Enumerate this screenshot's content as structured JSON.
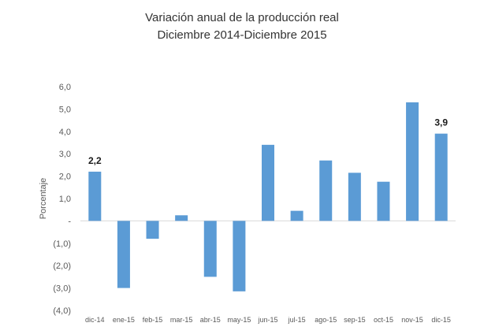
{
  "chart_data": {
    "type": "bar",
    "title": "Variación anual de la producción real",
    "subtitle": "Diciembre 2014-Diciembre 2015",
    "xlabel": "",
    "ylabel": "Porcentaje",
    "ylim": [
      -4,
      6
    ],
    "yticks": [
      {
        "value": 6,
        "label": "6,0"
      },
      {
        "value": 5,
        "label": "5,0"
      },
      {
        "value": 4,
        "label": "4,0"
      },
      {
        "value": 3,
        "label": "3,0"
      },
      {
        "value": 2,
        "label": "2,0"
      },
      {
        "value": 1,
        "label": "1,0"
      },
      {
        "value": 0,
        "label": "-"
      },
      {
        "value": -1,
        "label": "(1,0)"
      },
      {
        "value": -2,
        "label": "(2,0)"
      },
      {
        "value": -3,
        "label": "(3,0)"
      },
      {
        "value": -4,
        "label": "(4,0)"
      }
    ],
    "categories": [
      "dic-14",
      "ene-15",
      "feb-15",
      "mar-15",
      "abr-15",
      "may-15",
      "jun-15",
      "jul-15",
      "ago-15",
      "sep-15",
      "oct-15",
      "nov-15",
      "dic-15"
    ],
    "values": [
      2.2,
      -3.0,
      -0.8,
      0.25,
      -2.5,
      -3.15,
      3.4,
      0.45,
      2.7,
      2.15,
      1.75,
      5.3,
      3.9
    ],
    "data_labels": [
      {
        "index": 0,
        "text": "2,2"
      },
      {
        "index": 12,
        "text": "3,9"
      }
    ],
    "bar_color": "#5B9BD5",
    "grid": false,
    "legend": "none"
  }
}
